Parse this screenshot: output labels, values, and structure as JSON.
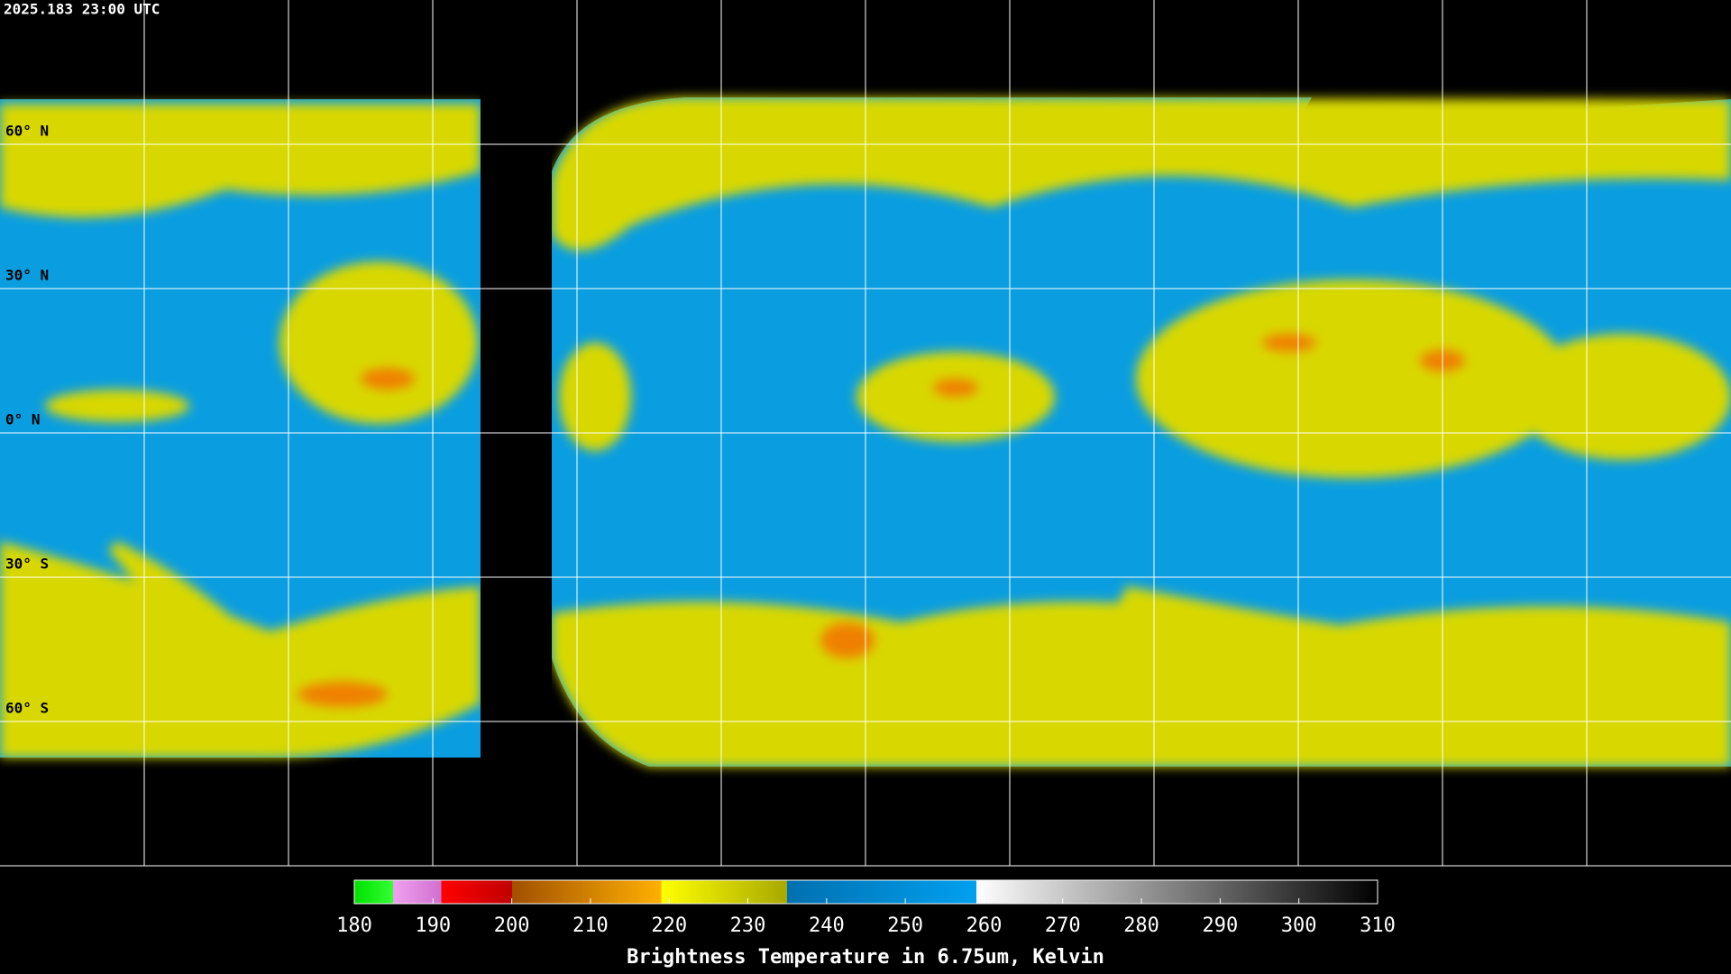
{
  "map": {
    "timestamp": "2025.183 23:00 UTC",
    "latlim": [
      -90,
      90
    ],
    "lat_ticks": [
      {
        "value": 60,
        "label": "60° N"
      },
      {
        "value": 30,
        "label": "30° N"
      },
      {
        "value": 0,
        "label": "0° N"
      },
      {
        "value": -30,
        "label": "30° S"
      },
      {
        "value": -60,
        "label": "60° S"
      }
    ],
    "colorbar": {
      "title": "Brightness Temperature in 6.75um, Kelvin",
      "lim": [
        180,
        310
      ],
      "ticks": [
        180,
        190,
        200,
        210,
        220,
        230,
        240,
        250,
        260,
        270,
        280,
        290,
        300,
        310
      ]
    }
  }
}
